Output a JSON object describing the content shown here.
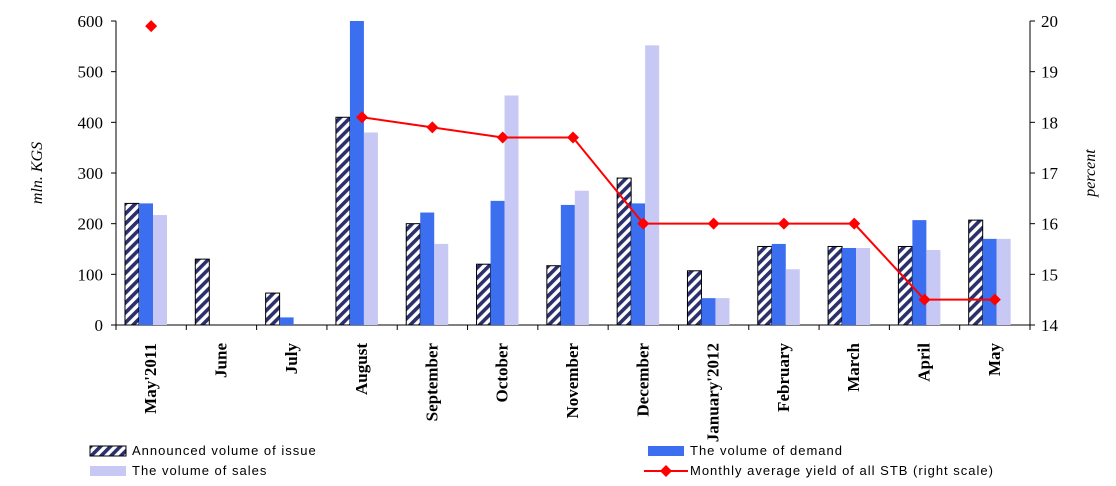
{
  "chart_data": {
    "type": "bar",
    "categories": [
      "May'2011",
      "June",
      "July",
      "August",
      "September",
      "October",
      "November",
      "December",
      "January'2012",
      "February",
      "March",
      "April",
      "May"
    ],
    "series": [
      {
        "name": "Announced volume of issue",
        "type": "bar",
        "axis": "left",
        "color": "#2b2f6b",
        "values": [
          240,
          130,
          63,
          410,
          200,
          120,
          117,
          290,
          107,
          155,
          155,
          155,
          207
        ]
      },
      {
        "name": "The volume of demand",
        "type": "bar",
        "axis": "left",
        "color": "#3b6ff0",
        "values": [
          240,
          0,
          15,
          600,
          222,
          245,
          237,
          240,
          53,
          160,
          152,
          207,
          170
        ]
      },
      {
        "name": "The volume of sales",
        "type": "bar",
        "axis": "left",
        "color": "#c8c8f4",
        "values": [
          217,
          0,
          0,
          380,
          160,
          453,
          265,
          552,
          53,
          110,
          152,
          148,
          170
        ]
      },
      {
        "name": "Monthly average yield of all STB (right scale)",
        "type": "line",
        "axis": "right",
        "color": "#ff0000",
        "values": [
          19.9,
          null,
          null,
          18.1,
          17.9,
          17.7,
          17.7,
          16.0,
          16.0,
          16.0,
          16.0,
          14.5,
          14.5
        ]
      }
    ],
    "ylabel": "mln. KGS",
    "y2label": "percent",
    "ylim": [
      0,
      600
    ],
    "y2lim": [
      14,
      20
    ],
    "yticks": [
      0,
      100,
      200,
      300,
      400,
      500,
      600
    ],
    "y2ticks": [
      14,
      15,
      16,
      17,
      18,
      19,
      20
    ],
    "grid": false,
    "legend_position": "bottom"
  }
}
